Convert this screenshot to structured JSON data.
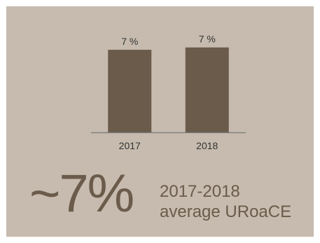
{
  "chart_data": {
    "type": "bar",
    "categories": [
      "2017",
      "2018"
    ],
    "values": [
      7,
      7.2
    ],
    "data_labels": [
      "7 %",
      "7 %"
    ],
    "title": "",
    "xlabel": "",
    "ylabel": "",
    "ylim": [
      0,
      9.5
    ],
    "grid": false,
    "legend": "none"
  },
  "summary": {
    "value": "~7%",
    "caption_line1": "2017-2018",
    "caption_line2": "average URoaCE"
  },
  "colors": {
    "background": "#c6bbae",
    "bar": "#6b5b4b",
    "axis": "#7a7a7a",
    "text": "#333333",
    "accent_text": "#6b5b4b"
  }
}
